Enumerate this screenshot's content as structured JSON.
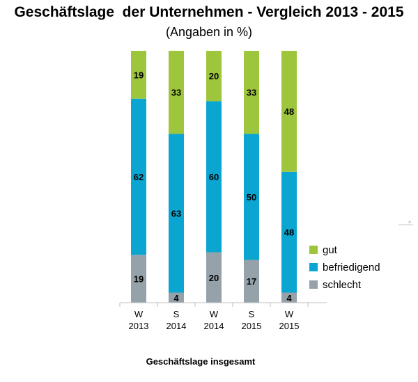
{
  "chart_data": {
    "type": "bar",
    "stacked": true,
    "orientation": "vertical",
    "title": "Geschäftslage  der Unternehmen - Vergleich 2013 - 2015",
    "subtitle": "(Angaben in %)",
    "xlabel": "Geschäftslage insgesamt",
    "categories": [
      [
        "W",
        "2013"
      ],
      [
        "S",
        "2014"
      ],
      [
        "W",
        "2014"
      ],
      [
        "S",
        "2015"
      ],
      [
        "W",
        "2015"
      ]
    ],
    "series": [
      {
        "name": "schlecht",
        "color": "#95a2aa",
        "values": [
          19,
          4,
          20,
          17,
          4
        ]
      },
      {
        "name": "befriedigend",
        "color": "#0aa5d1",
        "values": [
          62,
          63,
          60,
          50,
          48
        ]
      },
      {
        "name": "gut",
        "color": "#9dc63c",
        "values": [
          19,
          33,
          20,
          33,
          48
        ]
      }
    ],
    "legend_order": [
      "gut",
      "befriedigend",
      "schlecht"
    ],
    "legend_position": "right",
    "ylim": [
      0,
      100
    ],
    "grid": false
  }
}
